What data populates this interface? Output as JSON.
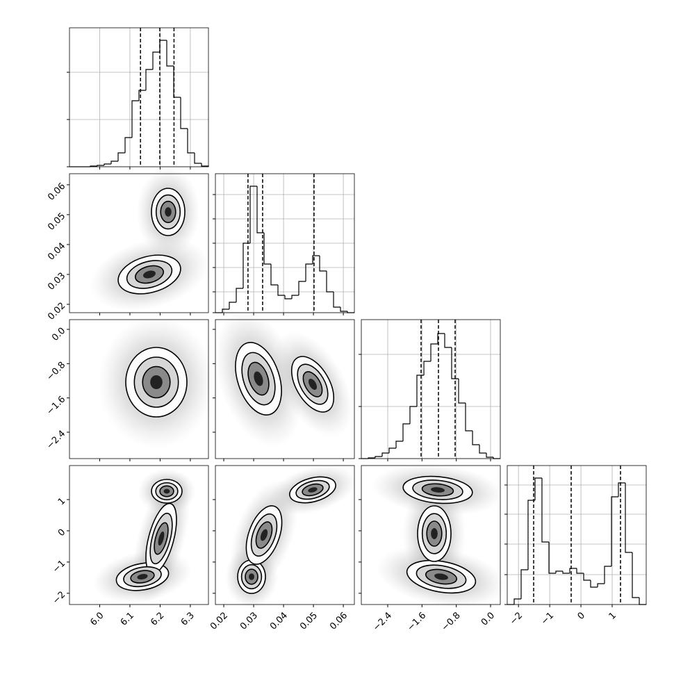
{
  "chart_data": {
    "type": "corner",
    "variables": [
      {
        "xlim": [
          5.9,
          6.36
        ],
        "xticks": [
          {
            "value": 6.0,
            "label": "6.0"
          },
          6.1,
          6.2,
          6.3
        ],
        "bins": [
          5.9,
          5.923,
          5.946,
          5.969,
          5.992,
          6.015,
          6.038,
          6.061,
          6.084,
          6.107,
          6.13,
          6.153,
          6.176,
          6.199,
          6.222,
          6.245,
          6.268,
          6.291,
          6.314,
          6.337,
          6.36
        ],
        "counts": [
          0,
          0,
          0,
          10,
          20,
          40,
          80,
          200,
          420,
          950,
          1100,
          1400,
          1650,
          1820,
          1450,
          1000,
          550,
          200,
          50,
          10
        ],
        "hist_ylim": [
          0,
          2000
        ],
        "hist_yticks": [
          0,
          680,
          1360
        ],
        "quantiles": [
          6.135,
          6.199,
          6.246
        ]
      },
      {
        "xlim": [
          0.0172,
          0.0637
        ],
        "xticks": [
          0.02,
          0.03,
          0.04,
          0.05,
          0.06
        ],
        "yticks": [
          0.02,
          0.03,
          0.04,
          0.05,
          0.06
        ],
        "bins": [
          0.0172,
          0.01953,
          0.02185,
          0.02418,
          0.0265,
          0.02883,
          0.03115,
          0.03348,
          0.0358,
          0.03813,
          0.04045,
          0.04278,
          0.0451,
          0.04743,
          0.04975,
          0.05208,
          0.0544,
          0.05673,
          0.05905,
          0.06138,
          0.0637
        ],
        "counts": [
          0,
          50,
          150,
          350,
          1000,
          1820,
          1150,
          700,
          400,
          250,
          200,
          250,
          450,
          700,
          820,
          600,
          300,
          80,
          20,
          0
        ],
        "hist_ylim": [
          0,
          2000
        ],
        "hist_yticks": [
          0,
          300,
          650,
          1000,
          1350,
          1700
        ],
        "quantiles": [
          0.0281,
          0.033,
          0.0502
        ]
      },
      {
        "xlim": [
          -3.016,
          0.227
        ],
        "xticks": [
          {
            "value": -2.4,
            "label": "−2.4"
          },
          {
            "value": -1.6,
            "label": "−1.6"
          },
          {
            "value": -0.8,
            "label": "−0.8"
          },
          {
            "value": 0.0,
            "label": "0.0"
          }
        ],
        "yticks": [
          {
            "value": -2.4,
            "label": "−2.4"
          },
          {
            "value": -1.6,
            "label": "−1.6"
          },
          {
            "value": -0.8,
            "label": "−0.8"
          },
          {
            "value": 0.0,
            "label": "0.0"
          }
        ],
        "bins": [
          -3.016,
          -2.854,
          -2.692,
          -2.529,
          -2.367,
          -2.205,
          -2.043,
          -1.881,
          -1.719,
          -1.556,
          -1.394,
          -1.232,
          -1.07,
          -0.908,
          -0.746,
          -0.584,
          -0.421,
          -0.259,
          -0.097,
          0.065,
          0.227
        ],
        "counts": [
          0,
          10,
          30,
          80,
          150,
          250,
          500,
          750,
          1200,
          1400,
          1650,
          1800,
          1600,
          1150,
          800,
          400,
          200,
          80,
          20,
          0
        ],
        "hist_ylim": [
          0,
          2000
        ],
        "hist_yticks": [
          0,
          750,
          1500
        ],
        "quantiles": [
          -1.622,
          -1.216,
          -0.827
        ]
      },
      {
        "xlim": [
          -2.36,
          2.09
        ],
        "xticks": [
          {
            "value": -2,
            "label": "−2"
          },
          {
            "value": -1,
            "label": "−1"
          },
          0,
          1
        ],
        "yticks": [
          {
            "value": -2,
            "label": "−2"
          },
          {
            "value": -1,
            "label": "−1"
          },
          0,
          1
        ],
        "bins": [
          -2.36,
          -2.138,
          -1.915,
          -1.693,
          -1.47,
          -1.248,
          -1.025,
          -0.803,
          -0.58,
          -0.358,
          -0.135,
          0.088,
          0.31,
          0.533,
          0.755,
          0.978,
          1.2,
          1.423,
          1.645,
          1.868,
          2.09
        ],
        "counts": [
          0,
          80,
          500,
          1500,
          1820,
          900,
          450,
          480,
          450,
          520,
          450,
          350,
          250,
          300,
          550,
          1550,
          1750,
          750,
          100,
          0
        ],
        "hist_ylim": [
          0,
          2000
        ],
        "hist_yticks": [
          0,
          430,
          870,
          1300,
          1720
        ],
        "quantiles": [
          -1.514,
          -0.313,
          1.267
        ]
      }
    ]
  }
}
